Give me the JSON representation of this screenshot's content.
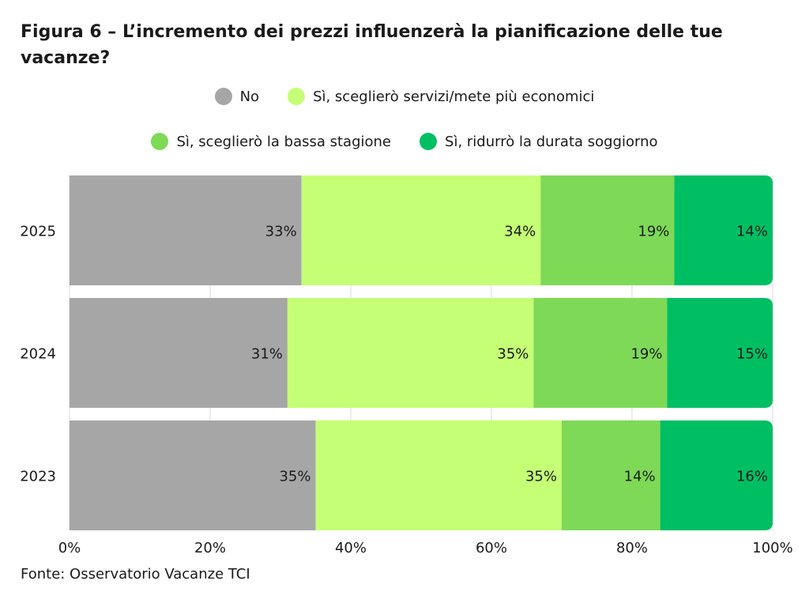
{
  "title": "Figura 6 – L’incremento dei prezzi influenzerà la pianificazione delle tue vacanze?",
  "source": "Fonte: Osservatorio Vacanze TCI",
  "chart_data": {
    "type": "bar",
    "orientation": "horizontal",
    "stacked": true,
    "categories": [
      "2025",
      "2024",
      "2023"
    ],
    "series": [
      {
        "name": "No",
        "color": "#a6a6a6",
        "values": [
          33,
          31,
          35
        ]
      },
      {
        "name": "Sì, sceglierò servizi/mete più economici",
        "color": "#c5ff75",
        "values": [
          34,
          35,
          35
        ]
      },
      {
        "name": "Sì, sceglierò la bassa stagione",
        "color": "#7ed957",
        "values": [
          19,
          19,
          14
        ]
      },
      {
        "name": "Sì, ridurrò la durata soggiorno",
        "color": "#00bf63",
        "values": [
          14,
          15,
          16
        ]
      }
    ],
    "data_labels": [
      [
        "33%",
        "34%",
        "19%",
        "14%"
      ],
      [
        "31%",
        "35%",
        "19%",
        "15%"
      ],
      [
        "35%",
        "35%",
        "14%",
        "16%"
      ]
    ],
    "xlim": [
      0,
      100
    ],
    "xticks": [
      "0%",
      "20%",
      "40%",
      "60%",
      "80%",
      "100%"
    ],
    "grid": true,
    "legend_position": "top"
  }
}
